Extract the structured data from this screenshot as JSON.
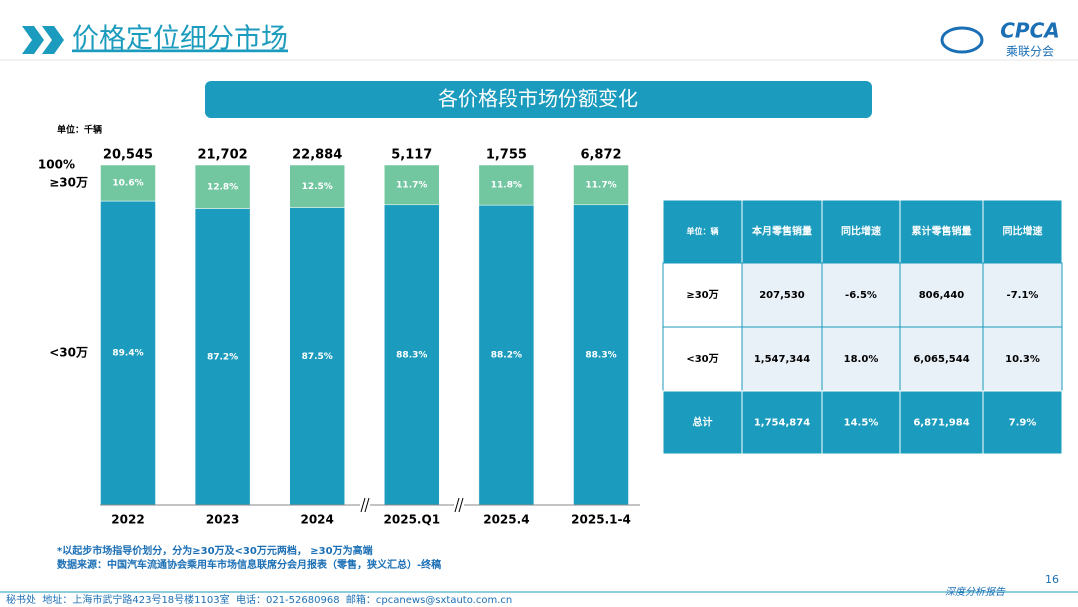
{
  "header": {
    "title": "价格定位细分市场",
    "logo": "CPCA",
    "logo_sub": "乘联分会"
  },
  "chart_data": {
    "type": "stacked_bar",
    "title": "各价格段市场份额变化",
    "unit": "单位：千辆",
    "categories": [
      "2022",
      "2023",
      "2024",
      "2025.Q1",
      "2025.4",
      "2025.1-4"
    ],
    "totals": {
      "values": [
        20545,
        21702,
        22884,
        5117,
        1755,
        6872
      ],
      "value_labels": [
        "20,545",
        "21,702",
        "22,884",
        "5,117",
        "1,755",
        "6,872"
      ]
    },
    "series": [
      {
        "name": "<30万",
        "color": "#1b9bbd",
        "values": [
          89.4,
          87.2,
          87.5,
          88.3,
          88.2,
          88.3
        ],
        "value_labels": [
          "89.4%",
          "87.2%",
          "87.5%",
          "88.3%",
          "88.2%",
          "88.3%"
        ]
      },
      {
        "name": "≥30万",
        "color": "#72c6a0",
        "values": [
          10.6,
          12.8,
          12.5,
          11.7,
          11.8,
          11.7
        ],
        "value_labels": [
          "10.6%",
          "12.8%",
          "12.5%",
          "11.7%",
          "11.8%",
          "11.7%"
        ]
      }
    ],
    "ylim": [
      0,
      100
    ],
    "yticks": [
      {
        "value": 100,
        "label": "100%"
      }
    ]
  },
  "table": {
    "header": [
      "单位：辆",
      "本月零售销量",
      "同比增速",
      "累计零售销量",
      "同比增速"
    ],
    "rows": [
      [
        "≥30万",
        "207,530",
        "-6.5%",
        "806,440",
        "-7.1%"
      ],
      [
        "<30万",
        "1,547,344",
        "18.0%",
        "6,065,544",
        "10.3%"
      ],
      [
        "总计",
        "1,754,874",
        "14.5%",
        "6,871,984",
        "7.9%"
      ]
    ]
  },
  "notes": [
    "*以起步市场指导价划分，分为≥30万及<30万元两档， ≥30万为高端",
    "数据来源：中国汽车流通协会乘用车市场信息联席分会月报表（零售，狭义汇总）-终稿"
  ],
  "footer": {
    "contact": "秘书处  地址：上海市武宁路423号18号楼1103室  电话：021-52680968  邮箱：cpcanews@sxtauto.com.cn",
    "report": "深度分析报告",
    "page": "16"
  }
}
